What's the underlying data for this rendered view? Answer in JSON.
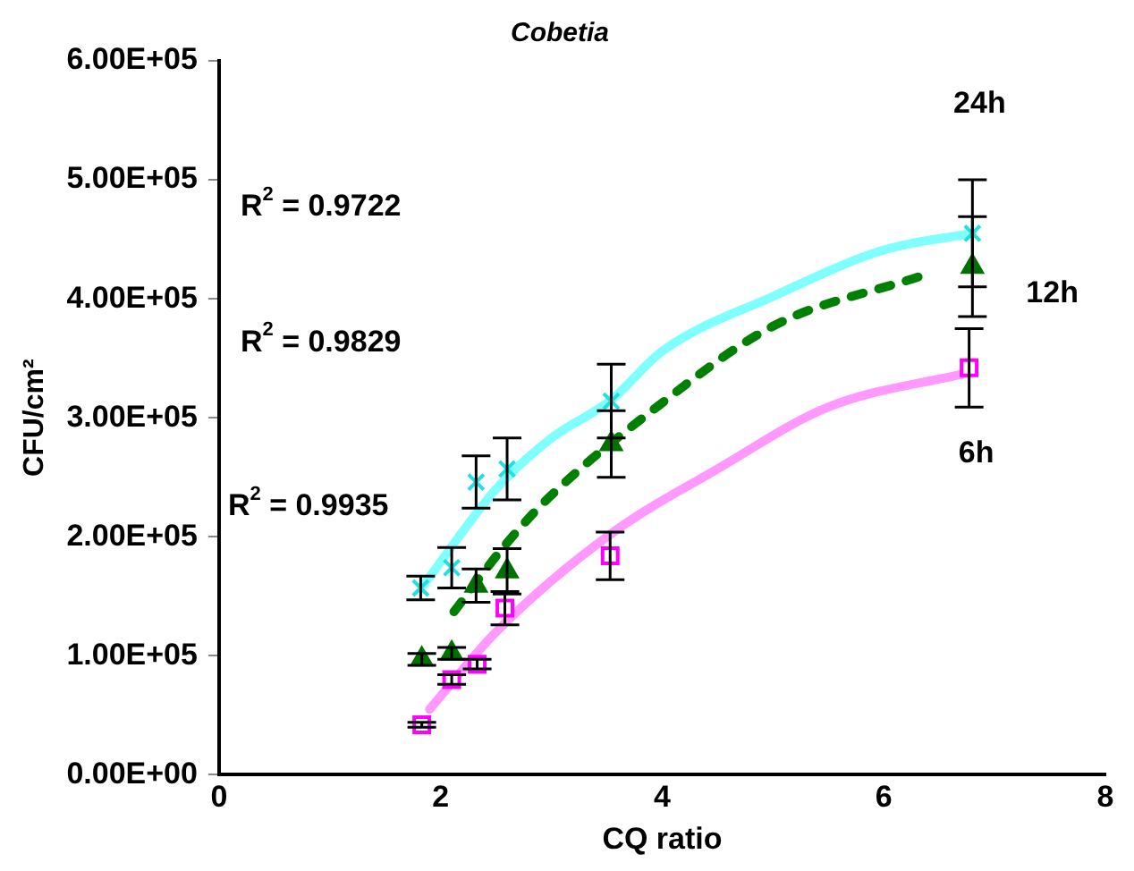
{
  "chart_data": {
    "type": "scatter",
    "title": "Cobetia",
    "xlabel": "CQ ratio",
    "ylabel": "CFU/cm²",
    "xlim": [
      0,
      8
    ],
    "xticks": [
      0,
      2,
      4,
      6,
      8
    ],
    "ylim": [
      0,
      600000
    ],
    "yticks": [
      {
        "value": 0,
        "label": "0.00E+00"
      },
      {
        "value": 100000,
        "label": "1.00E+05"
      },
      {
        "value": 200000,
        "label": "2.00E+05"
      },
      {
        "value": 300000,
        "label": "3.00E+05"
      },
      {
        "value": 400000,
        "label": "4.00E+05"
      },
      {
        "value": 500000,
        "label": "5.00E+05"
      },
      {
        "value": 600000,
        "label": "6.00E+05"
      }
    ],
    "grid": false,
    "legend": false,
    "annotations": [
      "R$^{2}$ = 0.9722",
      "R$^{2}$ = 0.9829",
      "R$^{2}$ = 0.9935"
    ],
    "series": [
      {
        "type": "line",
        "color": "#80ffff",
        "marker": "none",
        "line_style": "solid",
        "x": [
          1.85,
          2.5,
          3,
          3.54,
          4,
          5,
          6,
          6.8
        ],
        "values": [
          160000,
          240000,
          283000,
          315000,
          356000,
          402000,
          441000,
          455000
        ]
      },
      {
        "type": "line",
        "color": "#008000",
        "marker": "none",
        "line_style": "dashed",
        "x": [
          2.12,
          2.6,
          3,
          3.84,
          5,
          6.33
        ],
        "values": [
          137000,
          195000,
          235000,
          301000,
          377000,
          419000
        ]
      },
      {
        "type": "line",
        "color": "#ff99ff",
        "marker": "none",
        "line_style": "solid",
        "x": [
          1.9,
          2.5,
          3.53,
          4.5,
          5.5,
          6.77
        ],
        "values": [
          55000,
          120000,
          202000,
          257000,
          309000,
          338000
        ]
      },
      {
        "name": "24h",
        "color": "#22e0e0",
        "marker": "cross",
        "x": [
          1.82,
          2.1,
          2.32,
          2.6,
          3.54,
          6.8
        ],
        "values": [
          157000,
          174000,
          246000,
          257000,
          314000,
          455000
        ],
        "errors": [
          10000,
          17000,
          22000,
          26000,
          31000,
          45000
        ]
      },
      {
        "name": "12h",
        "color": "#007000",
        "marker": "triangle",
        "x": [
          1.83,
          2.1,
          2.32,
          2.6,
          3.54,
          6.8
        ],
        "values": [
          97000,
          102000,
          159000,
          171000,
          278000,
          427000
        ],
        "errors": [
          5000,
          5000,
          14000,
          19000,
          28000,
          42000
        ]
      },
      {
        "name": "6h",
        "color": "#ff00ff",
        "marker": "square",
        "x": [
          1.83,
          2.1,
          2.33,
          2.58,
          3.53,
          6.77
        ],
        "values": [
          42000,
          80000,
          93000,
          140000,
          184000,
          342000
        ],
        "errors": [
          2000,
          4000,
          4000,
          14000,
          20000,
          33000
        ]
      }
    ]
  }
}
